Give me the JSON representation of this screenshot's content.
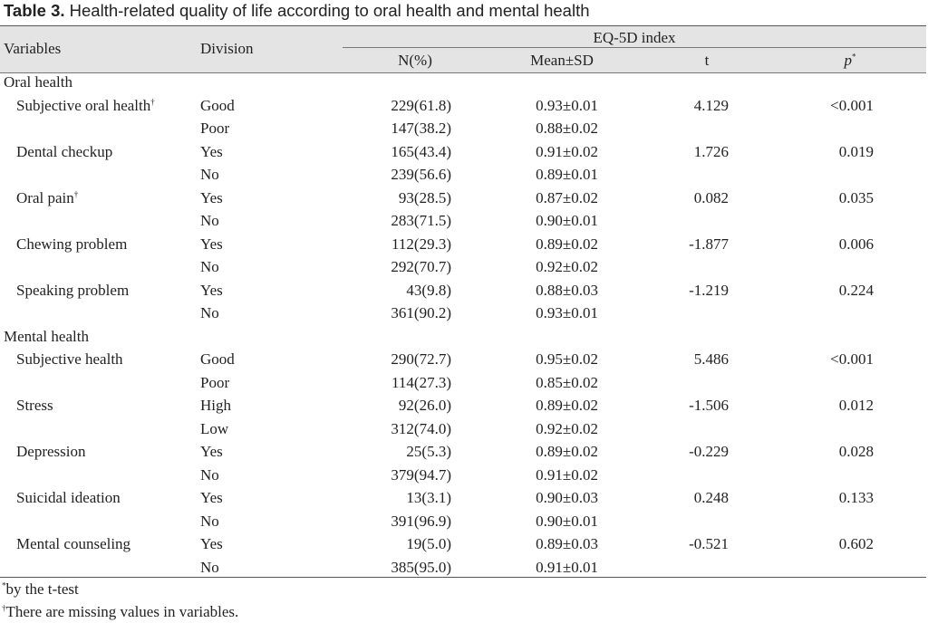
{
  "caption": {
    "label": "Table 3.",
    "text": " Health-related quality of life according to oral health and mental health"
  },
  "headers": {
    "variables": "Variables",
    "division": "Division",
    "group": "EQ-5D index",
    "n": "N(%)",
    "mean": "Mean±SD",
    "t": "t",
    "p": "p",
    "p_mark": "*"
  },
  "sections": [
    {
      "title": "Oral health",
      "rows": [
        {
          "variable": "Subjective oral health",
          "mark": "†",
          "divisions": [
            {
              "division": "Good",
              "n": "229(61.8)",
              "mean": "0.93±0.01",
              "t": "4.129",
              "p": "<0.001"
            },
            {
              "division": "Poor",
              "n": "147(38.2)",
              "mean": "0.88±0.02",
              "t": "",
              "p": ""
            }
          ]
        },
        {
          "variable": "Dental checkup",
          "mark": "",
          "divisions": [
            {
              "division": "Yes",
              "n": "165(43.4)",
              "mean": "0.91±0.02",
              "t": "1.726",
              "p": "0.019"
            },
            {
              "division": "No",
              "n": "239(56.6)",
              "mean": "0.89±0.01",
              "t": "",
              "p": ""
            }
          ]
        },
        {
          "variable": "Oral pain",
          "mark": "†",
          "divisions": [
            {
              "division": "Yes",
              "n": "93(28.5)",
              "mean": "0.87±0.02",
              "t": "0.082",
              "p": "0.035"
            },
            {
              "division": "No",
              "n": "283(71.5)",
              "mean": "0.90±0.01",
              "t": "",
              "p": ""
            }
          ]
        },
        {
          "variable": "Chewing problem",
          "mark": "",
          "divisions": [
            {
              "division": "Yes",
              "n": "112(29.3)",
              "mean": "0.89±0.02",
              "t": "-1.877",
              "p": "0.006"
            },
            {
              "division": "No",
              "n": "292(70.7)",
              "mean": "0.92±0.02",
              "t": "",
              "p": ""
            }
          ]
        },
        {
          "variable": "Speaking problem",
          "mark": "",
          "divisions": [
            {
              "division": "Yes",
              "n": "43(9.8)",
              "mean": "0.88±0.03",
              "t": "-1.219",
              "p": "0.224"
            },
            {
              "division": "No",
              "n": "361(90.2)",
              "mean": "0.93±0.01",
              "t": "",
              "p": ""
            }
          ]
        }
      ]
    },
    {
      "title": "Mental health",
      "rows": [
        {
          "variable": "Subjective health",
          "mark": "",
          "divisions": [
            {
              "division": "Good",
              "n": "290(72.7)",
              "mean": "0.95±0.02",
              "t": "5.486",
              "p": "<0.001"
            },
            {
              "division": "Poor",
              "n": "114(27.3)",
              "mean": "0.85±0.02",
              "t": "",
              "p": ""
            }
          ]
        },
        {
          "variable": "Stress",
          "mark": "",
          "divisions": [
            {
              "division": "High",
              "n": "92(26.0)",
              "mean": "0.89±0.02",
              "t": "-1.506",
              "p": "0.012"
            },
            {
              "division": "Low",
              "n": "312(74.0)",
              "mean": "0.92±0.02",
              "t": "",
              "p": ""
            }
          ]
        },
        {
          "variable": "Depression",
          "mark": "",
          "divisions": [
            {
              "division": "Yes",
              "n": "25(5.3)",
              "mean": "0.89±0.02",
              "t": "-0.229",
              "p": "0.028"
            },
            {
              "division": "No",
              "n": "379(94.7)",
              "mean": "0.91±0.02",
              "t": "",
              "p": ""
            }
          ]
        },
        {
          "variable": "Suicidal ideation",
          "mark": "",
          "divisions": [
            {
              "division": "Yes",
              "n": "13(3.1)",
              "mean": "0.90±0.03",
              "t": "0.248",
              "p": "0.133"
            },
            {
              "division": "No",
              "n": "391(96.9)",
              "mean": "0.90±0.01",
              "t": "",
              "p": ""
            }
          ]
        },
        {
          "variable": "Mental counseling",
          "mark": "",
          "divisions": [
            {
              "division": "Yes",
              "n": "19(5.0)",
              "mean": "0.89±0.03",
              "t": "-0.521",
              "p": "0.602"
            },
            {
              "division": "No",
              "n": "385(95.0)",
              "mean": "0.91±0.01",
              "t": "",
              "p": ""
            }
          ]
        }
      ]
    }
  ],
  "footnotes": [
    {
      "mark": "*",
      "text": "by the t-test"
    },
    {
      "mark": "†",
      "text": "There are missing values in variables."
    }
  ]
}
